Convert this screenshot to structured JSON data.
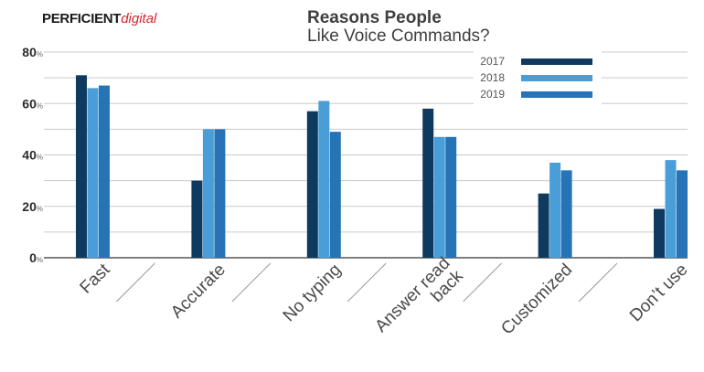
{
  "brand": {
    "name": "PERFICIENT",
    "sub": "digital"
  },
  "chart_data": {
    "type": "bar",
    "title_line1": "Reasons People",
    "title_line2": "Like Voice Commands?",
    "categories": [
      "Fast",
      "Accurate",
      "No typing",
      "Answer read back",
      "Customized",
      "Don’t use"
    ],
    "series": [
      {
        "name": "2017",
        "values": [
          71,
          30,
          57,
          58,
          25,
          19
        ],
        "color": "#0f3a5f"
      },
      {
        "name": "2018",
        "values": [
          66,
          50,
          61,
          47,
          37,
          38
        ],
        "color": "#4a9ed8"
      },
      {
        "name": "2019",
        "values": [
          67,
          50,
          49,
          47,
          34,
          34
        ],
        "color": "#2674b5"
      }
    ],
    "yticks": [
      "0",
      "20",
      "40",
      "60",
      "80"
    ],
    "ytick_unit": "%",
    "ylim": [
      0,
      80
    ],
    "grid": true,
    "legend": "top-right"
  }
}
